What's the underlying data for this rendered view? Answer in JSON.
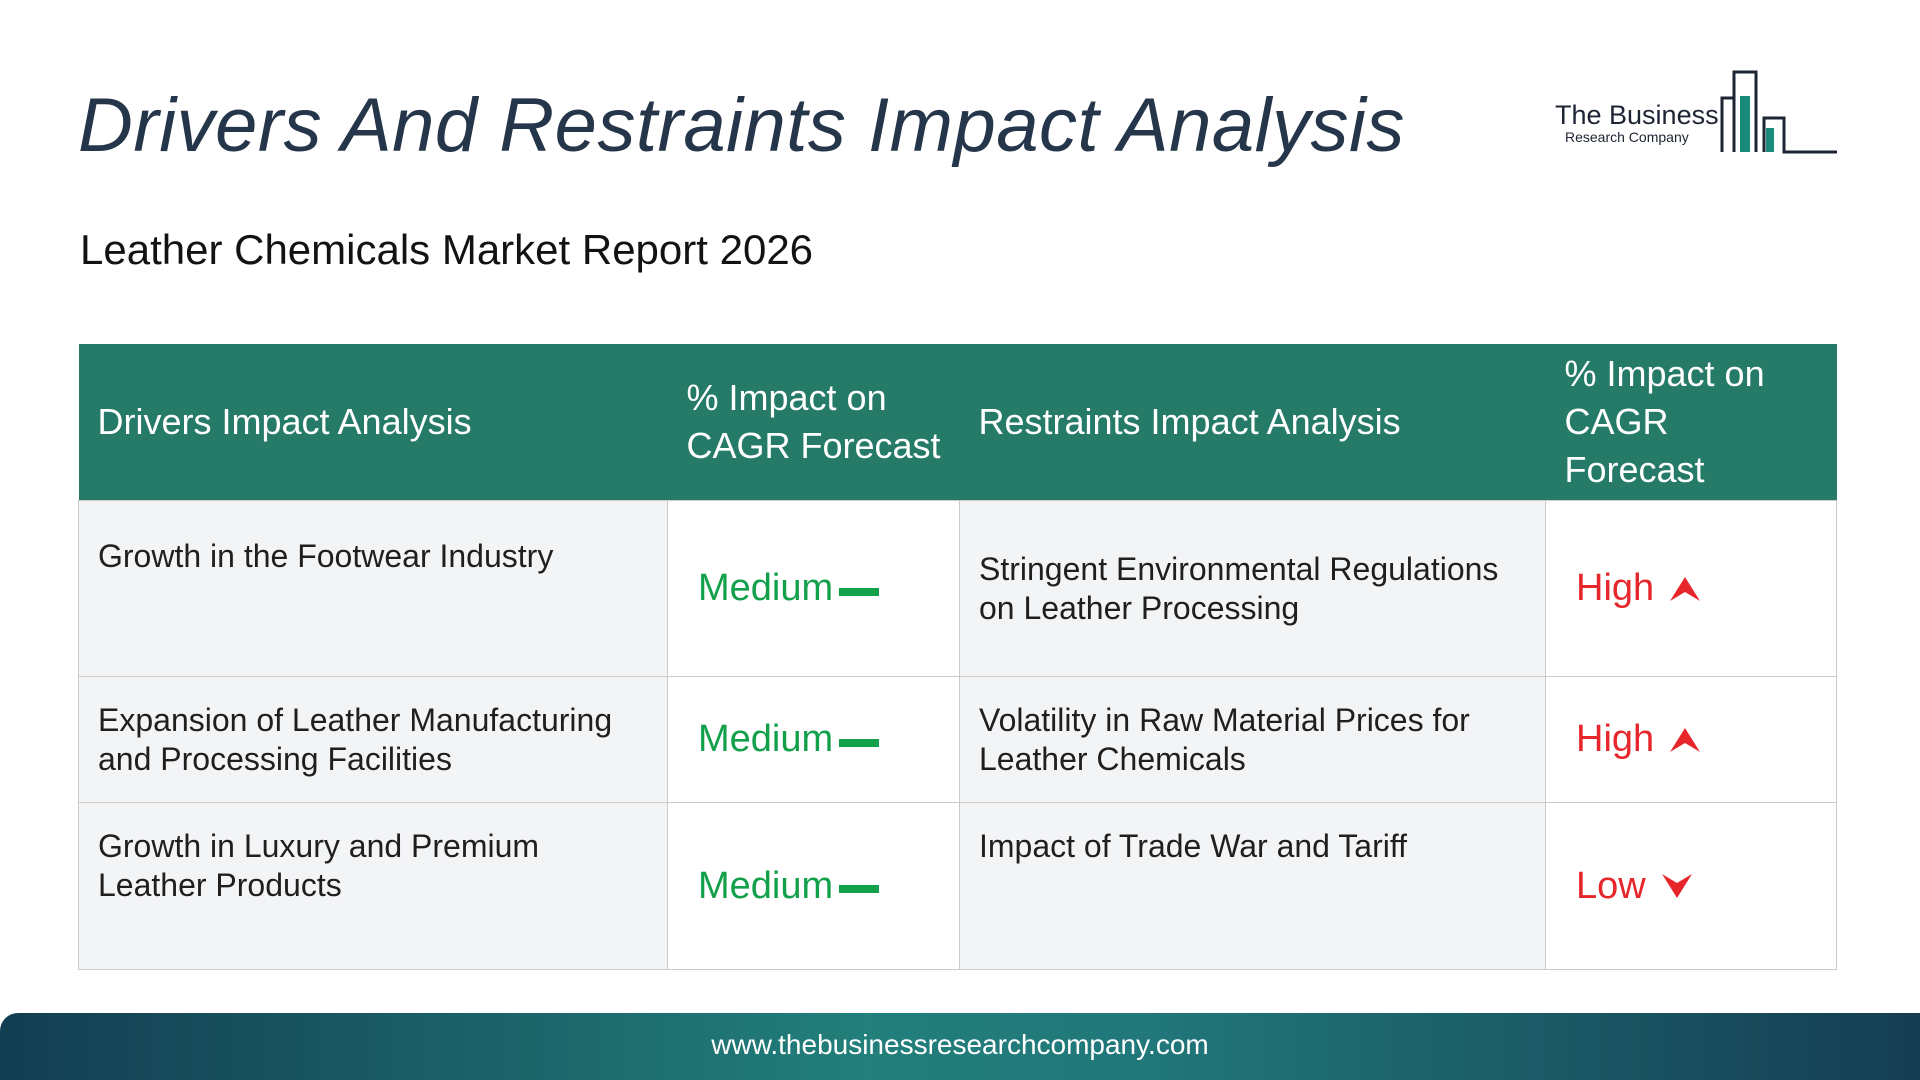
{
  "header": {
    "title": "Drivers And Restraints Impact Analysis",
    "subtitle": "Leather Chemicals Market Report 2026"
  },
  "logo": {
    "line1": "The Business",
    "line2": "Research Company",
    "color": "#1a8a78"
  },
  "table": {
    "headers": {
      "drivers": "Drivers Impact Analysis",
      "drivers_impact": "% Impact on CAGR Forecast",
      "restraints": "Restraints Impact Analysis",
      "restraints_impact": "% Impact on CAGR Forecast"
    },
    "rows": [
      {
        "driver": "Growth in the Footwear Industry",
        "driver_impact": "Medium",
        "restraint": "Stringent Environmental Regulations on Leather Processing",
        "restraint_impact": "High"
      },
      {
        "driver": "Expansion of Leather Manufacturing and Processing Facilities",
        "driver_impact": "Medium",
        "restraint": "Volatility in Raw Material Prices for Leather Chemicals",
        "restraint_impact": "High"
      },
      {
        "driver": "Growth in Luxury and Premium Leather Products",
        "driver_impact": "Medium",
        "restraint": "Impact of Trade War and Tariff",
        "restraint_impact": "Low"
      }
    ],
    "colors": {
      "header_bg": "#267a68",
      "medium": "#12a04a",
      "high": "#e6262b",
      "low": "#e6262b"
    },
    "icons": {
      "medium": "dash-icon",
      "high": "arrow-up-icon",
      "low": "arrow-down-icon"
    }
  },
  "footer": {
    "url": "www.thebusinessresearchcompany.com"
  }
}
